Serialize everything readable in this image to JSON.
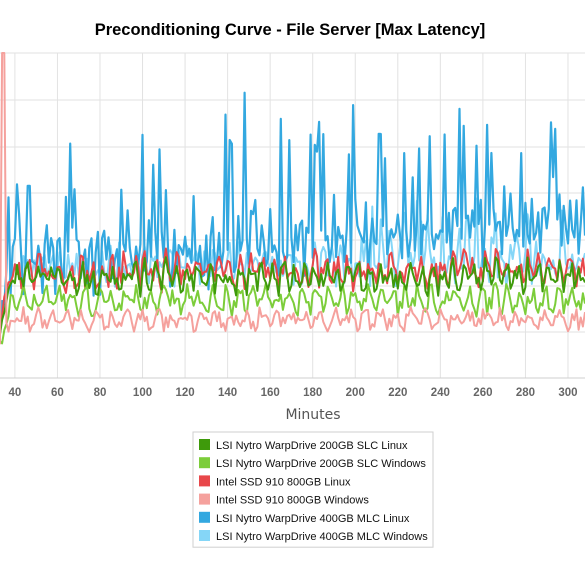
{
  "chart_data": {
    "type": "line",
    "title": "Preconditioning Curve - File Server [Max Latency]",
    "xlabel": "Minutes",
    "ylabel": "",
    "xlim": [
      33,
      308
    ],
    "ylim": [
      0,
      100
    ],
    "x_ticks": [
      40,
      60,
      80,
      100,
      120,
      140,
      160,
      180,
      200,
      220,
      240,
      260,
      280,
      300
    ],
    "grid": true,
    "legend": "bottom",
    "series": [
      {
        "name": "LSI Nytro WarpDrive 200GB SLC Linux",
        "color": "#3e9a0b",
        "base": 31,
        "amp": 4.5,
        "period": 5
      },
      {
        "name": "LSI Nytro WarpDrive 200GB SLC Windows",
        "color": "#7ccd3a",
        "base": 24,
        "amp": 4,
        "period": 6
      },
      {
        "name": "Intel SSD 910 800GB Linux",
        "color": "#e8474a",
        "base": 33,
        "amp": 5,
        "period": 5
      },
      {
        "name": "Intel SSD 910 800GB Windows",
        "color": "#f5a19d",
        "base": 18,
        "amp": 3,
        "period": 7
      },
      {
        "name": "LSI Nytro WarpDrive 400GB MLC Linux",
        "color": "#33a8e0",
        "base": 37,
        "amp": 9,
        "period": 3
      },
      {
        "name": "LSI Nytro WarpDrive 400GB MLC Windows",
        "color": "#85d6f7",
        "base": 35,
        "amp": 5,
        "period": 4
      }
    ]
  }
}
